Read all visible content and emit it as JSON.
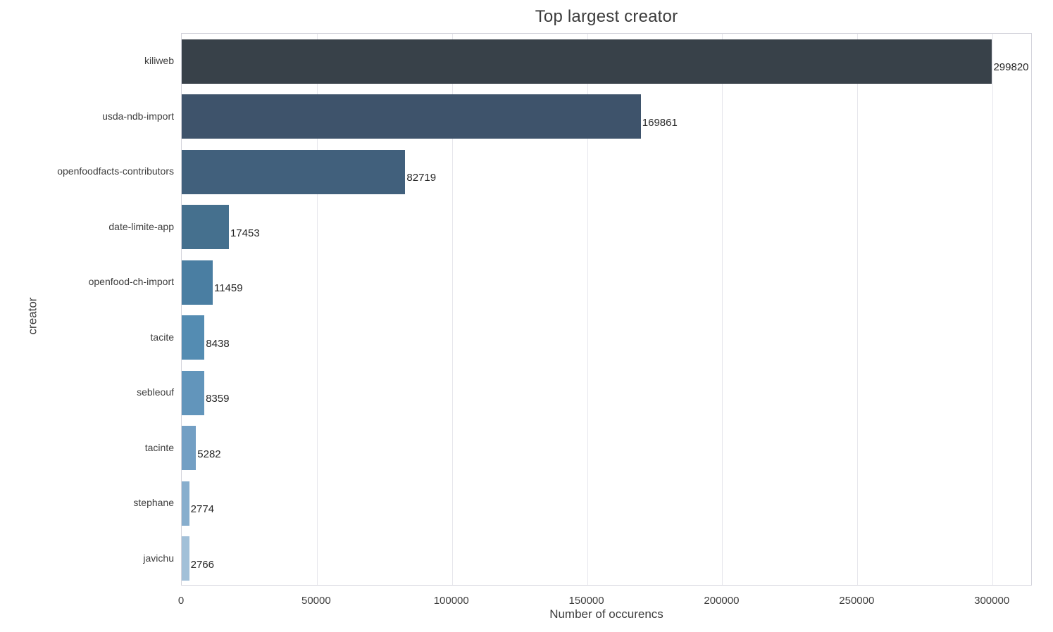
{
  "chart_data": {
    "type": "bar",
    "orientation": "horizontal",
    "title": "Top largest creator",
    "xlabel": "Number of occurencs",
    "ylabel": "creator",
    "categories": [
      "kiliweb",
      "usda-ndb-import",
      "openfoodfacts-contributors",
      "date-limite-app",
      "openfood-ch-import",
      "tacite",
      "sebleouf",
      "tacinte",
      "stephane",
      "javichu"
    ],
    "values": [
      299820,
      169861,
      82719,
      17453,
      11459,
      8438,
      8359,
      5282,
      2774,
      2766
    ],
    "value_labels": [
      "299820",
      "169861",
      "82719",
      "17453",
      "11459",
      "8438",
      "8359",
      "5282",
      "2774",
      "2766"
    ],
    "xticks": [
      0,
      50000,
      100000,
      150000,
      200000,
      250000,
      300000
    ],
    "xtick_labels": [
      "0",
      "50000",
      "100000",
      "150000",
      "200000",
      "250000",
      "300000"
    ],
    "xlim": [
      0,
      314811
    ],
    "grid": true,
    "legend_position": "none",
    "bar_colors": [
      "#384149",
      "#3e536b",
      "#41607c",
      "#45708e",
      "#4a7ea2",
      "#548cb2",
      "#6295bb",
      "#739fc4",
      "#88aecd",
      "#a2c0d8"
    ]
  },
  "colors": {
    "background": "#ffffff",
    "grid": "#e6e6ec",
    "plot_border": "#d4d4dc",
    "title_text": "#3c3c3c",
    "tick_text": "#3d3d3d",
    "value_label_text": "#262626"
  }
}
